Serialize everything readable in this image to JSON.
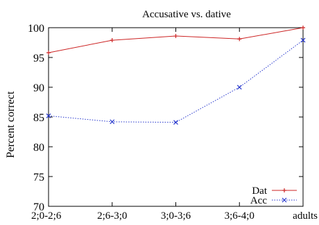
{
  "chart_data": {
    "type": "line",
    "title": "Accusative vs. dative",
    "xlabel": "",
    "ylabel": "Percent correct",
    "categories": [
      "2;0-2;6",
      "2;6-3;0",
      "3;0-3;6",
      "3;6-4;0",
      "adults"
    ],
    "ylim": [
      70,
      100
    ],
    "yticks": [
      70,
      75,
      80,
      85,
      90,
      95,
      100
    ],
    "grid": false,
    "legend_position": "bottom-right",
    "series": [
      {
        "name": "Dat",
        "values": [
          95.8,
          97.9,
          98.6,
          98.1,
          100.0
        ],
        "color": "#cc2222",
        "dash": "solid",
        "marker": "plus"
      },
      {
        "name": "Acc",
        "values": [
          85.2,
          84.2,
          84.1,
          90.0,
          97.9
        ],
        "color": "#2233cc",
        "dash": "dotted",
        "marker": "x"
      }
    ]
  }
}
